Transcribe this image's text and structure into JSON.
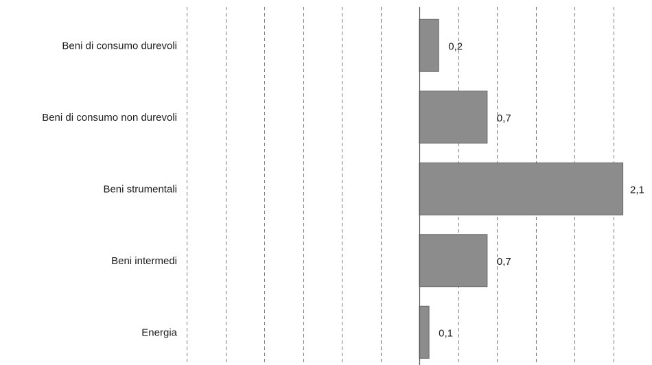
{
  "chart_data": {
    "type": "bar",
    "orientation": "horizontal",
    "categories": [
      "Beni di consumo durevoli",
      "Beni di consumo non durevoli",
      "Beni strumentali",
      "Beni intermedi",
      "Energia"
    ],
    "values": [
      0.2,
      0.7,
      2.1,
      0.7,
      0.1
    ],
    "value_labels": [
      "0,2",
      "0,7",
      "2,1",
      "0,7",
      "0,1"
    ],
    "xlim": [
      -2.4,
      2.1
    ],
    "gridlines_x": [
      -2.4,
      -2.0,
      -1.6,
      -1.2,
      -0.8,
      -0.4,
      0.0,
      0.4,
      0.8,
      1.2,
      1.6,
      2.0
    ],
    "grid": "vertical dashed",
    "legend": "none",
    "title": "",
    "xlabel": "",
    "ylabel": ""
  },
  "colors": {
    "bar_fill": "#8c8c8c",
    "bar_stroke": "#666666",
    "grid": "#7a7a7a",
    "axis": "#4d4d4d",
    "text": "#1a1a1a"
  }
}
